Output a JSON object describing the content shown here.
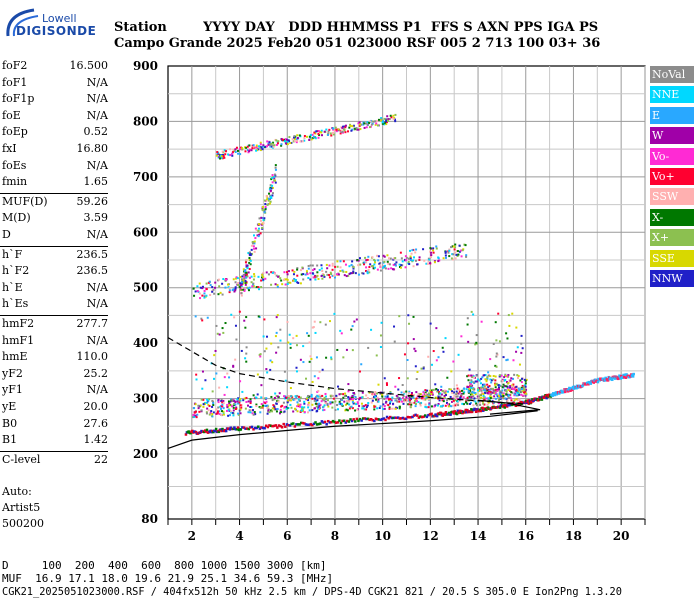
{
  "logo": {
    "top": "Lowell",
    "bottom": "DIGISONDE"
  },
  "header": {
    "row1": "Station        YYYY DAY   DDD HHMMSS P1  FFS S AXN PPS IGA PS",
    "row2": "Campo Grande 2025 Feb20 051 023000 RSF 005 2 713 100 03+ 36"
  },
  "scaled": [
    {
      "k": "foF2",
      "v": "16.500"
    },
    {
      "k": "foF1",
      "v": "N/A"
    },
    {
      "k": "foF1p",
      "v": "N/A"
    },
    {
      "k": "foE",
      "v": "N/A"
    },
    {
      "k": "foEp",
      "v": "0.52"
    },
    {
      "k": "fxI",
      "v": "16.80"
    },
    {
      "k": "foEs",
      "v": "N/A"
    },
    {
      "k": "fmin",
      "v": "1.65"
    },
    {
      "k": "MUF(D)",
      "v": "59.26"
    },
    {
      "k": "M(D)",
      "v": "3.59"
    },
    {
      "k": "D",
      "v": "N/A"
    },
    {
      "k": "h`F",
      "v": "236.5"
    },
    {
      "k": "h`F2",
      "v": "236.5"
    },
    {
      "k": "h`E",
      "v": "N/A"
    },
    {
      "k": "h`Es",
      "v": "N/A"
    },
    {
      "k": "hmF2",
      "v": "277.7"
    },
    {
      "k": "hmF1",
      "v": "N/A"
    },
    {
      "k": "hmE",
      "v": "110.0"
    },
    {
      "k": "yF2",
      "v": "25.2"
    },
    {
      "k": "yF1",
      "v": "N/A"
    },
    {
      "k": "yE",
      "v": "20.0"
    },
    {
      "k": "B0",
      "v": "27.6"
    },
    {
      "k": "B1",
      "v": "1.42"
    },
    {
      "k": "C-level",
      "v": "22"
    }
  ],
  "notes": [
    "Auto:",
    "Artist5",
    "500200"
  ],
  "legend": [
    {
      "label": "NoVal",
      "color": "#8c8c8c"
    },
    {
      "label": "NNE",
      "color": "#00d8ff"
    },
    {
      "label": "E",
      "color": "#29a8ff"
    },
    {
      "label": "W",
      "color": "#a000a8"
    },
    {
      "label": "Vo-",
      "color": "#ff2ad4"
    },
    {
      "label": "Vo+",
      "color": "#ff0030"
    },
    {
      "label": "SSW",
      "color": "#ffb0b0"
    },
    {
      "label": "X-",
      "color": "#007800"
    },
    {
      "label": "X+",
      "color": "#8cc050"
    },
    {
      "label": "SSE",
      "color": "#d8d800"
    },
    {
      "label": "NNW",
      "color": "#2020c8"
    }
  ],
  "bottom": {
    "line1": "D     100  200  400  600  800 1000 1500 3000 [km]",
    "line2": "MUF  16.9 17.1 18.0 19.6 21.9 25.1 34.6 59.3 [MHz]",
    "line3": "CGK21_2025051023000.RSF / 404fx512h 50 kHz 2.5 km / DPS-4D CGK21 821 / 20.5 S 305.0 E Ion2Png 1.3.20"
  },
  "chart_data": {
    "type": "scatter",
    "xlim": [
      1,
      21
    ],
    "ylim": [
      80,
      900
    ],
    "x_ticks": [
      2,
      4,
      6,
      8,
      10,
      12,
      14,
      16,
      18,
      20
    ],
    "y_ticks": [
      80,
      200,
      300,
      400,
      500,
      600,
      700,
      800,
      900
    ],
    "y_tick_labels": [
      "80",
      "200",
      "300",
      "400",
      "500",
      "600",
      "700",
      "800",
      "900"
    ],
    "grid": true,
    "main_trace": [
      [
        1.7,
        240
      ],
      [
        4,
        248
      ],
      [
        8,
        260
      ],
      [
        12,
        272
      ],
      [
        14,
        282
      ],
      [
        16,
        295
      ],
      [
        17.5,
        315
      ],
      [
        19,
        335
      ],
      [
        20.5,
        345
      ]
    ],
    "profile_solid": [
      [
        1.0,
        210
      ],
      [
        2,
        225
      ],
      [
        4,
        235
      ],
      [
        8,
        250
      ],
      [
        12,
        260
      ],
      [
        14.5,
        268
      ],
      [
        16.5,
        278
      ]
    ],
    "profile_dashed": [
      [
        1.0,
        410
      ],
      [
        2,
        385
      ],
      [
        3,
        360
      ],
      [
        4,
        345
      ],
      [
        6,
        330
      ],
      [
        8,
        318
      ],
      [
        10,
        310
      ],
      [
        12,
        302
      ],
      [
        14,
        296
      ],
      [
        16,
        290
      ]
    ],
    "clusters": [
      {
        "x": [
          2.0,
          16.0
        ],
        "y": [
          265,
          300
        ],
        "n": 900
      },
      {
        "x": [
          2.0,
          13.5
        ],
        "y": [
          495,
          575
        ],
        "n": 420
      },
      {
        "x": [
          3.0,
          10.5
        ],
        "y": [
          735,
          815
        ],
        "n": 300
      },
      {
        "x": [
          4.0,
          5.5
        ],
        "y": [
          500,
          720
        ],
        "n": 160
      },
      {
        "x": [
          13.5,
          16.0
        ],
        "y": [
          305,
          345
        ],
        "n": 200
      },
      {
        "x": [
          2.0,
          16.0
        ],
        "y": [
          300,
          460
        ],
        "n": 260
      }
    ]
  }
}
